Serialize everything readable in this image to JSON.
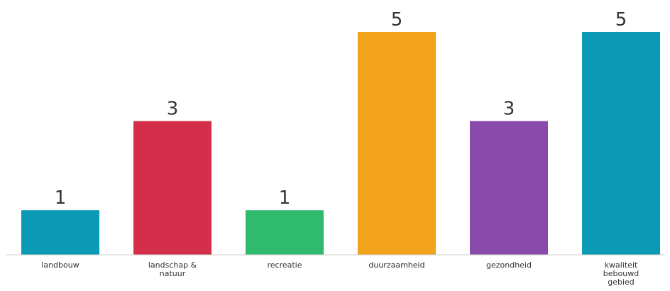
{
  "chart_data": {
    "type": "bar",
    "categories": [
      [
        "landbouw"
      ],
      [
        "landschap &",
        "natuur"
      ],
      [
        "recreatie"
      ],
      [
        "duurzaamheid"
      ],
      [
        "gezondheid"
      ],
      [
        "kwaliteit",
        "bebouwd",
        "gebied"
      ]
    ],
    "values": [
      1,
      3,
      1,
      5,
      3,
      5
    ],
    "colors": [
      "#0a9ab5",
      "#d42f4a",
      "#2fba6e",
      "#f2a31d",
      "#8a4aab",
      "#0a9ab5"
    ],
    "title": "",
    "xlabel": "",
    "ylabel": "",
    "ylim": [
      0,
      5
    ],
    "grid": false,
    "data_labels": true,
    "baseline_color": "#cccccc"
  }
}
